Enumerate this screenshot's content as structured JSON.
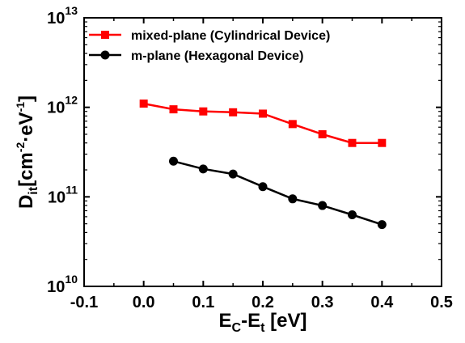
{
  "chart_data": {
    "type": "line",
    "title": "",
    "x_scale": "linear",
    "y_scale": "log",
    "xlim": [
      -0.1,
      0.5
    ],
    "ylim": [
      10000000000.0,
      10000000000000.0
    ],
    "x_ticks": [
      "-0.1",
      "0.0",
      "0.1",
      "0.2",
      "0.3",
      "0.4",
      "0.5"
    ],
    "y_ticks": [
      {
        "base": "10",
        "exp": "10"
      },
      {
        "base": "10",
        "exp": "11"
      },
      {
        "base": "10",
        "exp": "12"
      },
      {
        "base": "10",
        "exp": "13"
      }
    ],
    "xlabel": {
      "main": "E",
      "sub1": "C",
      "mid": "-E",
      "sub2": "t",
      "unit": " [eV]"
    },
    "ylabel": {
      "main": "D",
      "sub": "it",
      "unit_open": "[cm",
      "exp1": "-2",
      "dot": "·eV",
      "exp2": "-1",
      "unit_close": "]"
    },
    "grid": false,
    "legend_position": "top-left",
    "series": [
      {
        "name": "mixed-plane (Cylindrical Device)",
        "color": "#ff0000",
        "marker": "square",
        "x": [
          0.0,
          0.05,
          0.1,
          0.15,
          0.2,
          0.25,
          0.3,
          0.35,
          0.4
        ],
        "y": [
          1100000000000.0,
          950000000000.0,
          900000000000.0,
          880000000000.0,
          850000000000.0,
          650000000000.0,
          500000000000.0,
          400000000000.0,
          400000000000.0
        ]
      },
      {
        "name": "m-plane (Hexagonal Device)",
        "color": "#000000",
        "marker": "circle",
        "x": [
          0.05,
          0.1,
          0.15,
          0.2,
          0.25,
          0.3,
          0.35,
          0.4
        ],
        "y": [
          250000000000.0,
          205000000000.0,
          180000000000.0,
          130000000000.0,
          95000000000.0,
          80000000000.0,
          63000000000.0,
          49000000000.0
        ]
      }
    ]
  }
}
